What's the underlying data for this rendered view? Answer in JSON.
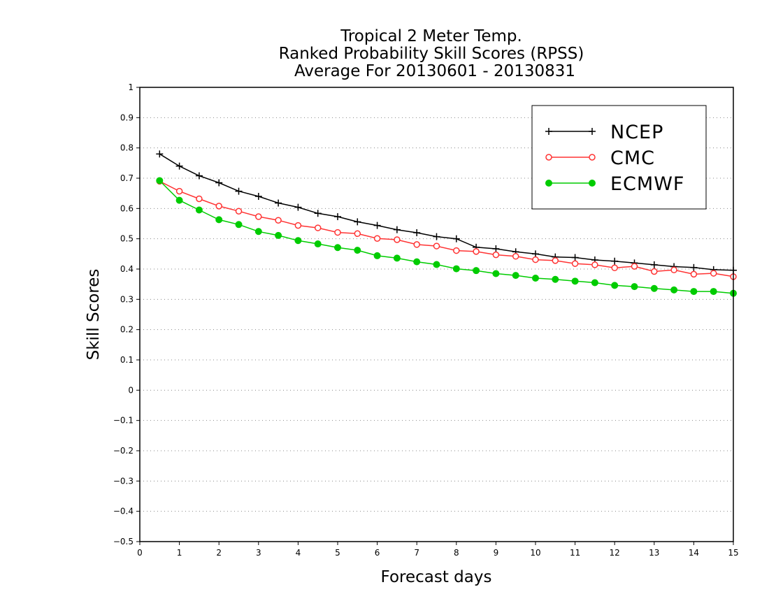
{
  "chart_data": {
    "type": "line",
    "title_lines": [
      "Tropical 2 Meter Temp.",
      "Ranked Probability Skill Scores (RPSS)",
      "Average For 20130601 - 20130831"
    ],
    "xlabel": "Forecast days",
    "ylabel": "Skill Scores",
    "xlim": [
      0,
      15
    ],
    "ylim": [
      -0.5,
      1
    ],
    "x_ticks": [
      "0",
      "1",
      "2",
      "3",
      "4",
      "5",
      "6",
      "7",
      "8",
      "9",
      "10",
      "11",
      "12",
      "13",
      "14",
      "15"
    ],
    "y_ticks": [
      "−0.5",
      "−0.4",
      "−0.3",
      "−0.2",
      "−0.1",
      "0",
      "0.1",
      "0.2",
      "0.3",
      "0.4",
      "0.5",
      "0.6",
      "0.7",
      "0.8",
      "0.9",
      "1"
    ],
    "grid": "horizontal dotted",
    "legend_position": "top-right",
    "x": [
      0.5,
      1,
      1.5,
      2,
      2.5,
      3,
      3.5,
      4,
      4.5,
      5,
      5.5,
      6,
      6.5,
      7,
      7.5,
      8,
      8.5,
      9,
      9.5,
      10,
      10.5,
      11,
      11.5,
      12,
      12.5,
      13,
      13.5,
      14,
      14.5,
      15
    ],
    "series": [
      {
        "name": "NCEP",
        "color": "#000000",
        "marker": "plus",
        "values": [
          0.78,
          0.74,
          0.708,
          0.685,
          0.657,
          0.64,
          0.618,
          0.604,
          0.584,
          0.573,
          0.556,
          0.544,
          0.53,
          0.52,
          0.507,
          0.5,
          0.472,
          0.467,
          0.457,
          0.45,
          0.44,
          0.438,
          0.43,
          0.426,
          0.42,
          0.414,
          0.408,
          0.405,
          0.398,
          0.396
        ]
      },
      {
        "name": "CMC",
        "color": "#ff3333",
        "marker": "open-circle",
        "values": [
          0.69,
          0.657,
          0.632,
          0.608,
          0.591,
          0.573,
          0.561,
          0.544,
          0.536,
          0.521,
          0.517,
          0.501,
          0.497,
          0.481,
          0.476,
          0.461,
          0.458,
          0.447,
          0.442,
          0.431,
          0.428,
          0.418,
          0.414,
          0.404,
          0.409,
          0.392,
          0.397,
          0.383,
          0.386,
          0.375
        ]
      },
      {
        "name": "ECMWF",
        "color": "#00cc00",
        "marker": "filled-circle",
        "values": [
          0.692,
          0.627,
          0.595,
          0.563,
          0.547,
          0.524,
          0.511,
          0.494,
          0.483,
          0.471,
          0.462,
          0.444,
          0.436,
          0.424,
          0.415,
          0.401,
          0.395,
          0.385,
          0.379,
          0.37,
          0.366,
          0.36,
          0.355,
          0.346,
          0.342,
          0.336,
          0.331,
          0.326,
          0.326,
          0.32
        ]
      }
    ]
  }
}
